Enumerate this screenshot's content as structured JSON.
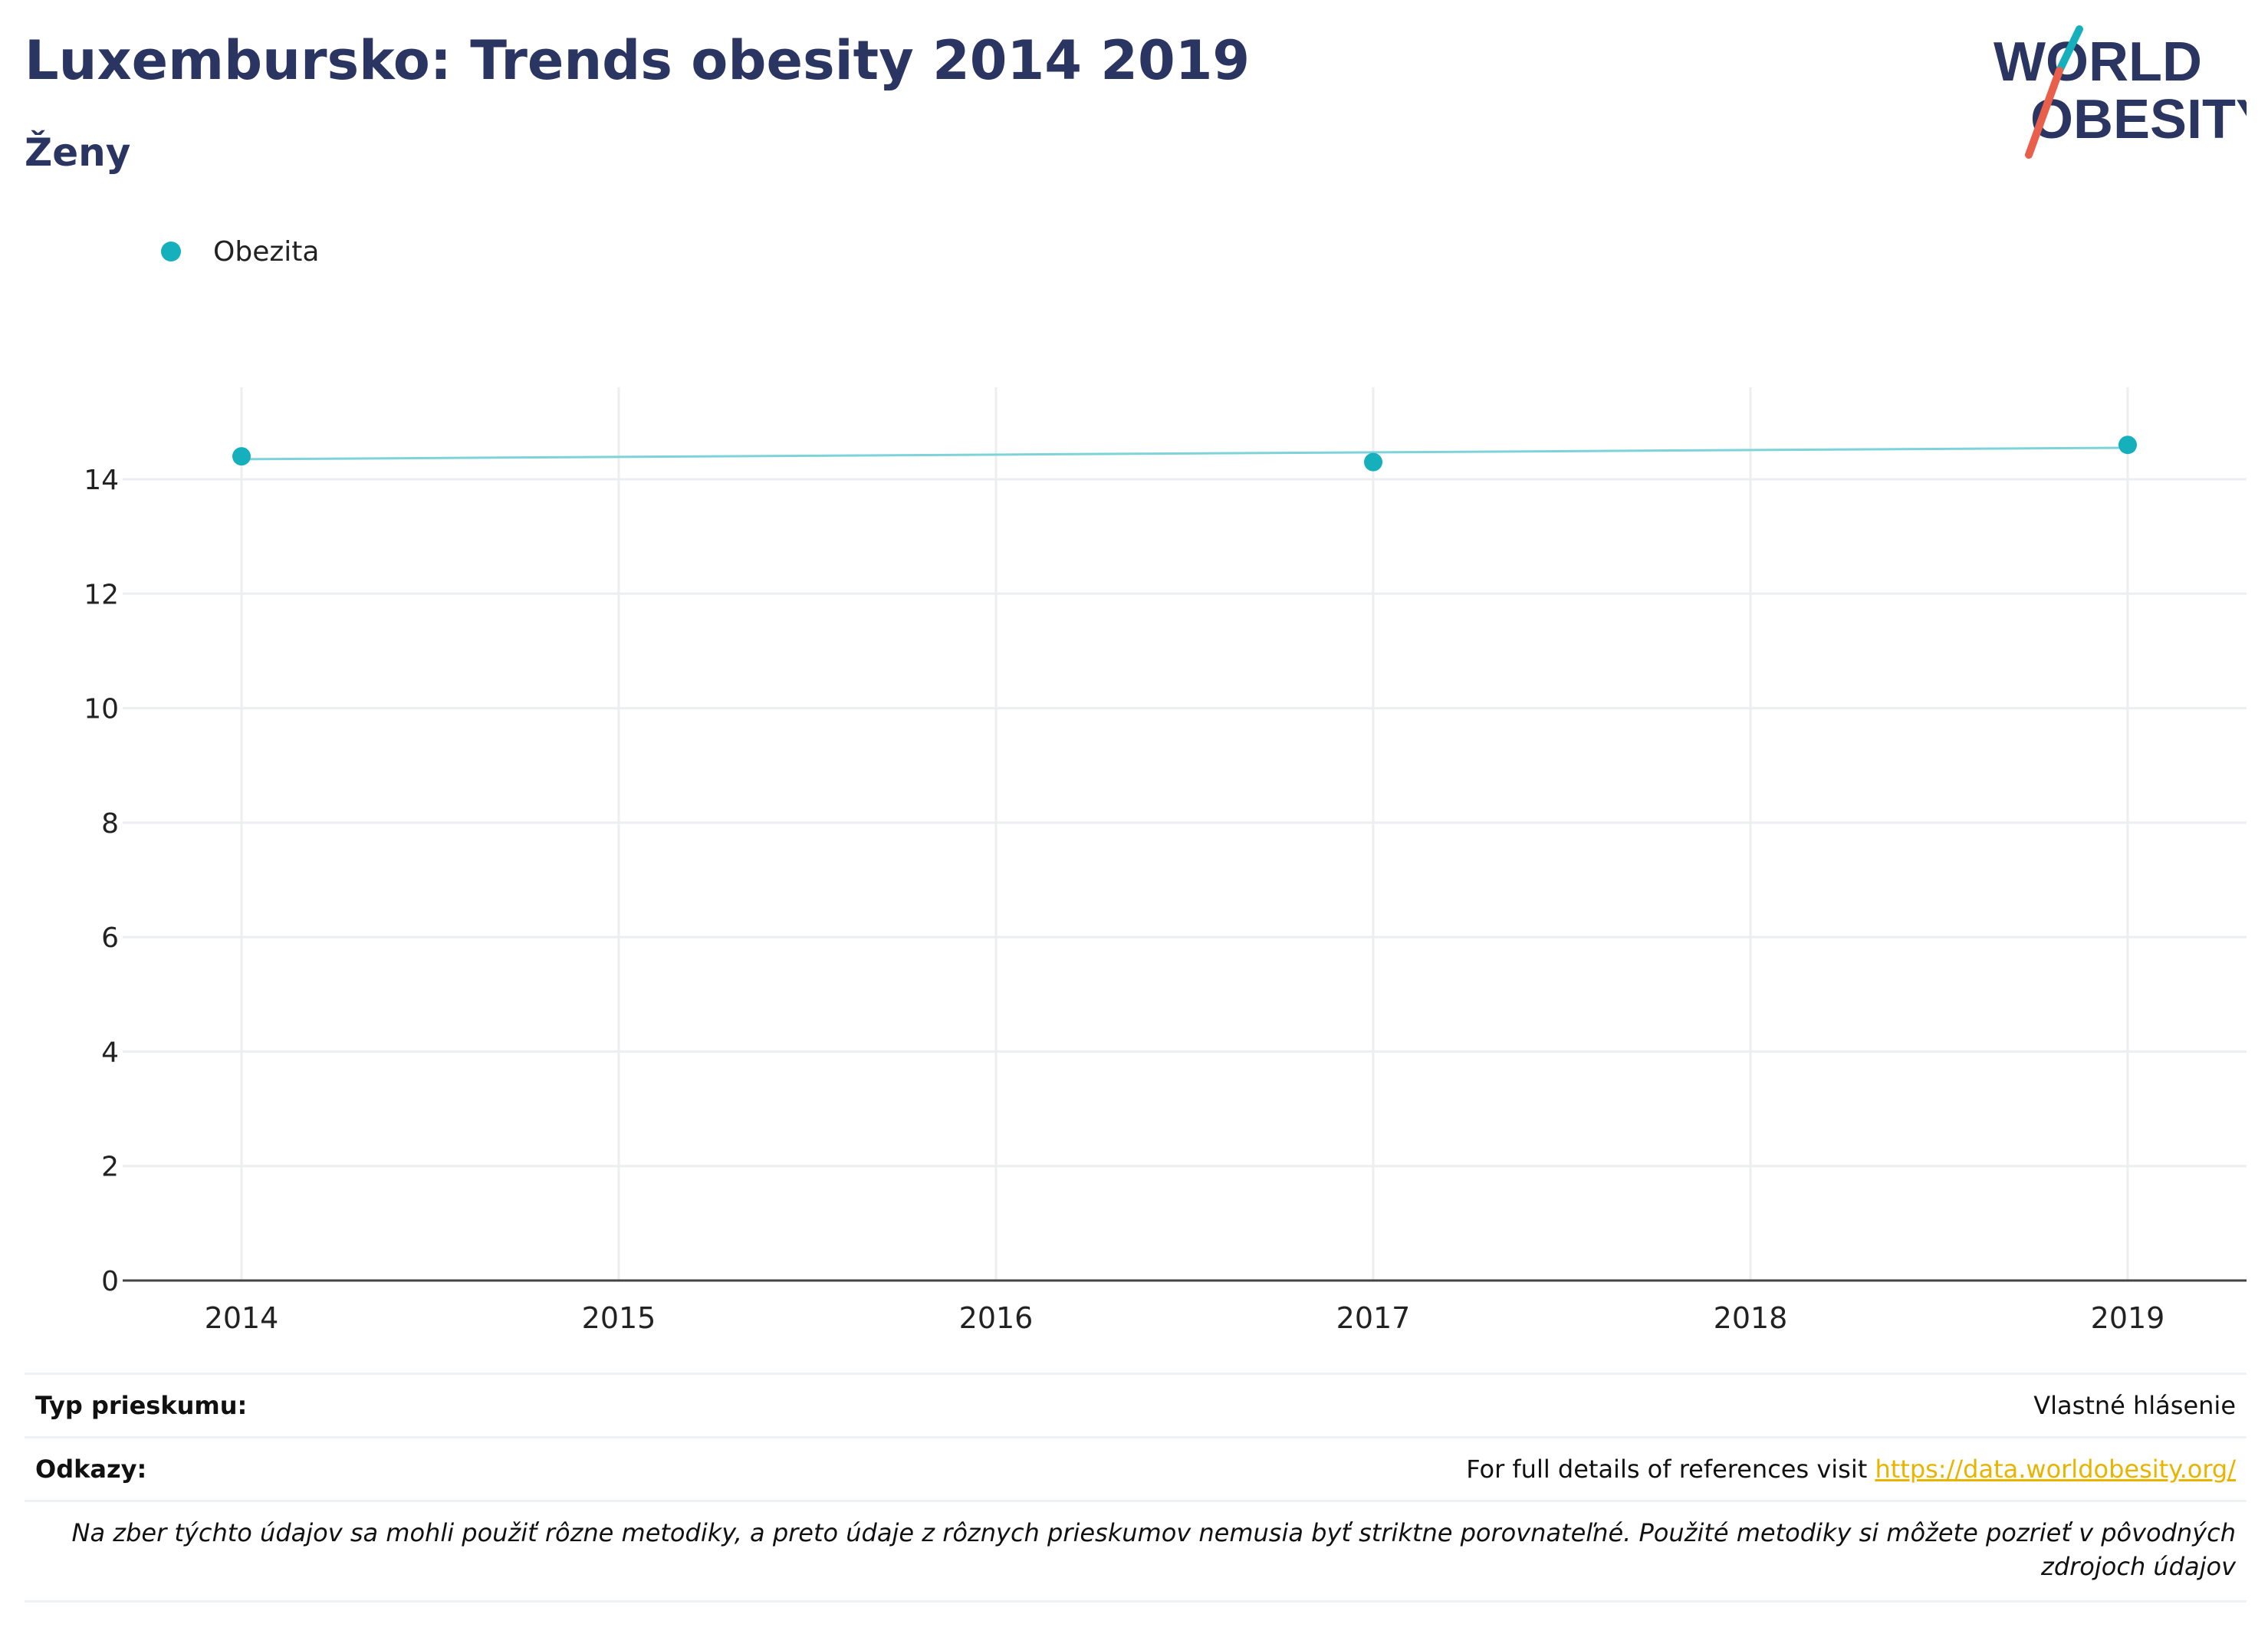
{
  "header": {
    "title": "Luxembursko: Trends obesity 2014 2019",
    "subtitle": "Ženy"
  },
  "logo": {
    "line1": "WORLD",
    "line2": "OBESITY"
  },
  "legend": {
    "label": "Obezita"
  },
  "colors": {
    "series": "#16b0bd",
    "line": "#7dd3d9",
    "title": "#2a3561",
    "link": "#e8b400",
    "accent_red": "#e8604c"
  },
  "chart_data": {
    "type": "line",
    "x_categories": [
      "2014",
      "2015",
      "2016",
      "2017",
      "2018",
      "2019"
    ],
    "ylim": [
      0,
      15.5
    ],
    "yticks": [
      "0",
      "2",
      "4",
      "6",
      "8",
      "10",
      "12",
      "14"
    ],
    "series": [
      {
        "name": "Obezita",
        "points": [
          {
            "x": "2014",
            "y": 14.4
          },
          {
            "x": "2017",
            "y": 14.3
          },
          {
            "x": "2019",
            "y": 14.6
          }
        ],
        "trend": {
          "from": {
            "x": "2014",
            "y": 14.35
          },
          "to": {
            "x": "2019",
            "y": 14.55
          }
        }
      }
    ],
    "grid": true
  },
  "meta": {
    "survey_label": "Typ prieskumu:",
    "survey_value": "Vlastné hlásenie",
    "refs_label": "Odkazy:",
    "refs_text": "For full details of references visit ",
    "refs_link": "https://data.worldobesity.org/",
    "note": "Na zber týchto údajov sa mohli použiť rôzne metodiky, a preto údaje z rôznych prieskumov nemusia byť striktne porovnateľné. Použité metodiky si môžete pozrieť v pôvodných zdrojoch údajov"
  }
}
